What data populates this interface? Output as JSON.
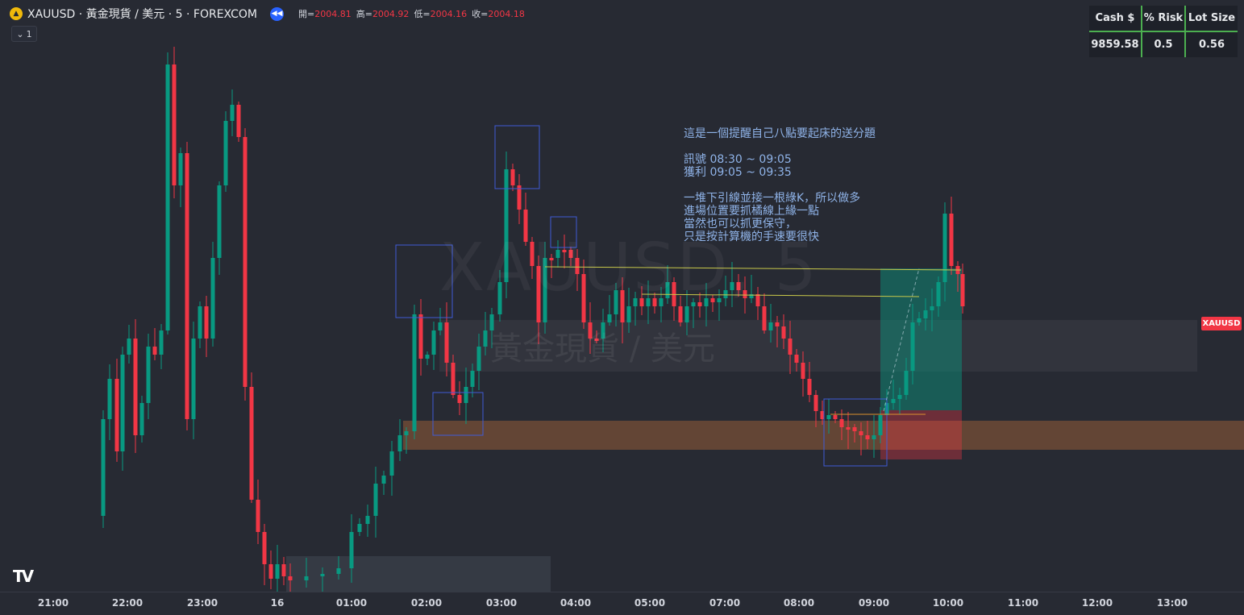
{
  "header": {
    "symbol_icon": "gold-coin-icon",
    "title": "XAUUSD · 黃金現貨 / 美元 · 5 · FOREXCOM",
    "replay_icon": "rewind-icon",
    "ohlc": {
      "open_label": "開=",
      "open": "2004.81",
      "high_label": "高=",
      "high": "2004.92",
      "low_label": "低=",
      "low": "2004.16",
      "close_label": "收=",
      "close": "2004.18"
    }
  },
  "indicator_toggle": {
    "icon": "chevron-down-icon",
    "count": "1"
  },
  "risk_table": {
    "headers": [
      "Cash $",
      "% Risk",
      "Lot Size"
    ],
    "values": [
      "9859.58",
      "0.5",
      "0.56"
    ]
  },
  "annotation": {
    "line1": "這是一個提醒自己八點要起床的送分題",
    "line2": "訊號 08:30 ~ 09:05",
    "line3": "獲利 09:05 ~ 09:35",
    "line4": "一堆下引線並接一根綠K，所以做多",
    "line5": "進場位置要抓橘線上緣一點",
    "line6": "當然也可以抓更保守，",
    "line7": "只是按計算機的手速要很快"
  },
  "watermark": {
    "symbol": "XAUUSD, 5",
    "description": "黃金現貨 / 美元"
  },
  "price_tag": "XAUUSD",
  "logo": "TV",
  "time_axis": {
    "ticks": [
      "21:00",
      "22:00",
      "23:00",
      "16",
      "01:00",
      "02:00",
      "03:00",
      "04:00",
      "05:00",
      "07:00",
      "08:00",
      "09:00",
      "10:00",
      "11:00",
      "12:00",
      "13:00"
    ]
  },
  "colors": {
    "background": "#272a33",
    "up": "#089981",
    "down": "#f23645",
    "accent": "#2962ff",
    "table_border": "#4caf50"
  }
}
